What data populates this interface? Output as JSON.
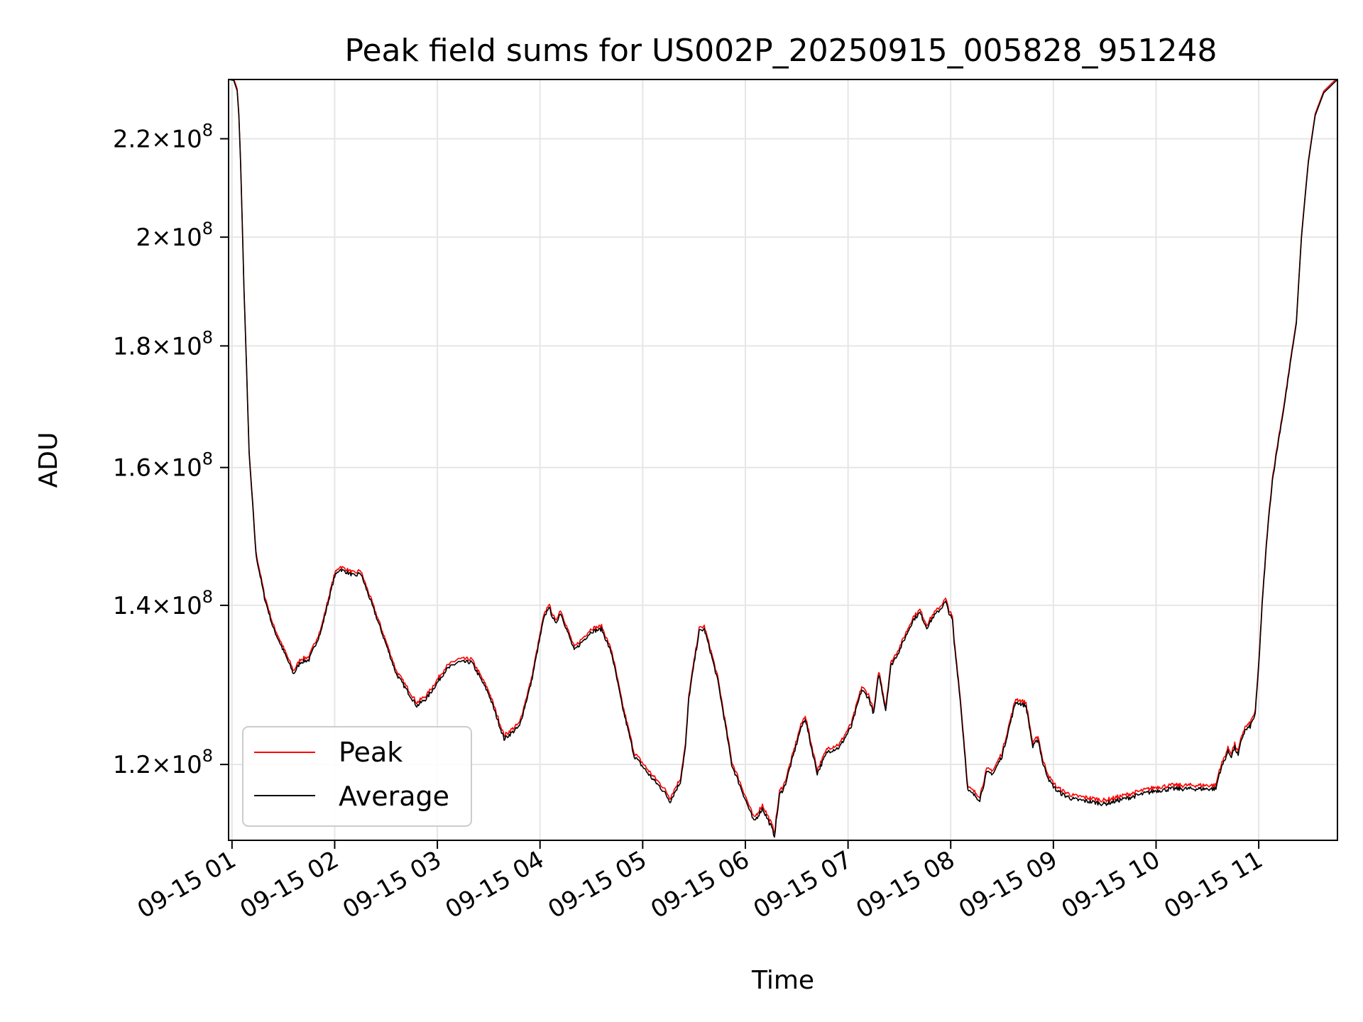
{
  "chart_data": {
    "type": "line",
    "title": "Peak field sums for US002P_20250915_005828_951248",
    "xlabel": "Time",
    "ylabel": "ADU",
    "y_scale": "log",
    "grid": true,
    "legend_position": "lower-left",
    "xlim": [
      "2025-09-15 00:58",
      "2025-09-15 11:46"
    ],
    "ylim": [
      111500000,
      233000000
    ],
    "x_ticks": [
      {
        "t": "2025-09-15 01:00",
        "label": "09-15 01"
      },
      {
        "t": "2025-09-15 02:00",
        "label": "09-15 02"
      },
      {
        "t": "2025-09-15 03:00",
        "label": "09-15 03"
      },
      {
        "t": "2025-09-15 04:00",
        "label": "09-15 04"
      },
      {
        "t": "2025-09-15 05:00",
        "label": "09-15 05"
      },
      {
        "t": "2025-09-15 06:00",
        "label": "09-15 06"
      },
      {
        "t": "2025-09-15 07:00",
        "label": "09-15 07"
      },
      {
        "t": "2025-09-15 08:00",
        "label": "09-15 08"
      },
      {
        "t": "2025-09-15 09:00",
        "label": "09-15 09"
      },
      {
        "t": "2025-09-15 10:00",
        "label": "09-15 10"
      },
      {
        "t": "2025-09-15 11:00",
        "label": "09-15 11"
      }
    ],
    "y_ticks": [
      {
        "v": 120000000,
        "mant": "1.2",
        "exp": "8"
      },
      {
        "v": 140000000,
        "mant": "1.4",
        "exp": "8"
      },
      {
        "v": 160000000,
        "mant": "1.6",
        "exp": "8"
      },
      {
        "v": 180000000,
        "mant": "1.8",
        "exp": "8"
      },
      {
        "v": 200000000,
        "mant": "2",
        "exp": "8"
      },
      {
        "v": 220000000,
        "mant": "2.2",
        "exp": "8"
      }
    ],
    "series": [
      {
        "name": "Peak",
        "color": "#ff0000",
        "offset": 0.4
      },
      {
        "name": "Average",
        "color": "#000000",
        "offset": 0
      }
    ],
    "x": [
      "2025-09-15 00:58",
      "2025-09-15 01:01",
      "2025-09-15 01:03",
      "2025-09-15 01:04",
      "2025-09-15 01:05",
      "2025-09-15 01:07",
      "2025-09-15 01:10",
      "2025-09-15 01:14",
      "2025-09-15 01:19",
      "2025-09-15 01:24",
      "2025-09-15 01:30",
      "2025-09-15 01:36",
      "2025-09-15 01:40",
      "2025-09-15 01:45",
      "2025-09-15 01:52",
      "2025-09-15 02:00",
      "2025-09-15 02:03",
      "2025-09-15 02:12",
      "2025-09-15 02:15",
      "2025-09-15 02:25",
      "2025-09-15 02:36",
      "2025-09-15 02:48",
      "2025-09-15 02:54",
      "2025-09-15 03:05",
      "2025-09-15 03:12",
      "2025-09-15 03:20",
      "2025-09-15 03:30",
      "2025-09-15 03:39",
      "2025-09-15 03:48",
      "2025-09-15 03:55",
      "2025-09-15 04:02",
      "2025-09-15 04:05",
      "2025-09-15 04:09",
      "2025-09-15 04:12",
      "2025-09-15 04:20",
      "2025-09-15 04:30",
      "2025-09-15 04:36",
      "2025-09-15 04:42",
      "2025-09-15 04:48",
      "2025-09-15 04:55",
      "2025-09-15 05:05",
      "2025-09-15 05:12",
      "2025-09-15 05:16",
      "2025-09-15 05:22",
      "2025-09-15 05:25",
      "2025-09-15 05:27",
      "2025-09-15 05:33",
      "2025-09-15 05:36",
      "2025-09-15 05:40",
      "2025-09-15 05:44",
      "2025-09-15 05:52",
      "2025-09-15 05:58",
      "2025-09-15 06:02",
      "2025-09-15 06:05",
      "2025-09-15 06:10",
      "2025-09-15 06:15",
      "2025-09-15 06:17",
      "2025-09-15 06:20",
      "2025-09-15 06:23",
      "2025-09-15 06:28",
      "2025-09-15 06:32",
      "2025-09-15 06:35",
      "2025-09-15 06:38",
      "2025-09-15 06:42",
      "2025-09-15 06:48",
      "2025-09-15 06:55",
      "2025-09-15 07:02",
      "2025-09-15 07:08",
      "2025-09-15 07:12",
      "2025-09-15 07:15",
      "2025-09-15 07:18",
      "2025-09-15 07:22",
      "2025-09-15 07:25",
      "2025-09-15 07:30",
      "2025-09-15 07:35",
      "2025-09-15 07:38",
      "2025-09-15 07:42",
      "2025-09-15 07:46",
      "2025-09-15 07:50",
      "2025-09-15 07:54",
      "2025-09-15 07:57",
      "2025-09-15 07:59",
      "2025-09-15 08:01",
      "2025-09-15 08:02",
      "2025-09-15 08:05",
      "2025-09-15 08:10",
      "2025-09-15 08:17",
      "2025-09-15 08:21",
      "2025-09-15 08:25",
      "2025-09-15 08:30",
      "2025-09-15 08:38",
      "2025-09-15 08:44",
      "2025-09-15 08:48",
      "2025-09-15 08:51",
      "2025-09-15 08:54",
      "2025-09-15 08:58",
      "2025-09-15 09:00",
      "2025-09-15 09:02",
      "2025-09-15 09:06",
      "2025-09-15 09:12",
      "2025-09-15 09:20",
      "2025-09-15 09:30",
      "2025-09-15 09:40",
      "2025-09-15 09:50",
      "2025-09-15 10:00",
      "2025-09-15 10:10",
      "2025-09-15 10:20",
      "2025-09-15 10:35",
      "2025-09-15 10:37",
      "2025-09-15 10:40",
      "2025-09-15 10:42",
      "2025-09-15 10:44",
      "2025-09-15 10:46",
      "2025-09-15 10:48",
      "2025-09-15 10:50",
      "2025-09-15 10:52",
      "2025-09-15 10:55",
      "2025-09-15 10:58",
      "2025-09-15 11:00",
      "2025-09-15 11:02",
      "2025-09-15 11:05",
      "2025-09-15 11:08",
      "2025-09-15 11:12",
      "2025-09-15 11:15",
      "2025-09-15 11:18",
      "2025-09-15 11:22",
      "2025-09-15 11:25",
      "2025-09-15 11:29",
      "2025-09-15 11:33",
      "2025-09-15 11:38",
      "2025-09-15 11:46"
    ],
    "values": [
      233.0,
      232.8,
      230.5,
      225.0,
      215.0,
      190.0,
      162.0,
      147.0,
      141.0,
      137.0,
      134.0,
      131.0,
      132.5,
      132.8,
      136.5,
      144.0,
      145.0,
      144.0,
      144.5,
      138.0,
      131.0,
      127.0,
      128.0,
      131.5,
      132.5,
      132.5,
      128.5,
      123.0,
      124.5,
      130.0,
      138.0,
      139.8,
      137.5,
      139.0,
      134.0,
      136.5,
      136.8,
      133.5,
      127.0,
      121.0,
      118.5,
      117.0,
      115.8,
      118.0,
      122.0,
      128.0,
      136.5,
      136.8,
      133.5,
      130.0,
      120.0,
      117.0,
      115.0,
      113.5,
      115.0,
      113.0,
      112.0,
      116.5,
      117.5,
      121.0,
      124.0,
      125.5,
      122.5,
      119.0,
      121.5,
      122.0,
      124.5,
      129.0,
      128.0,
      126.0,
      131.0,
      126.5,
      132.0,
      134.0,
      136.5,
      138.0,
      139.0,
      137.0,
      138.5,
      139.5,
      140.5,
      139.0,
      138.0,
      135.0,
      129.0,
      117.0,
      116.0,
      119.0,
      119.0,
      121.0,
      127.5,
      127.0,
      122.0,
      123.0,
      120.0,
      118.0,
      117.5,
      117.0,
      116.5,
      116.0,
      115.8,
      115.5,
      116.0,
      116.5,
      117.0,
      117.2,
      117.2,
      117.2,
      119.0,
      120.5,
      121.5,
      121.0,
      122.0,
      121.0,
      123.0,
      124.0,
      124.5,
      126.0,
      132.0,
      140.0,
      150.0,
      158.0,
      165.0,
      170.0,
      176.0,
      184.0,
      200.0,
      215.0,
      225.0,
      230.0,
      233.0
    ],
    "y_unit_multiplier": 1000000
  },
  "legend": {
    "items": [
      {
        "label": "Peak",
        "color": "#ff0000"
      },
      {
        "label": "Average",
        "color": "#000000"
      }
    ]
  }
}
